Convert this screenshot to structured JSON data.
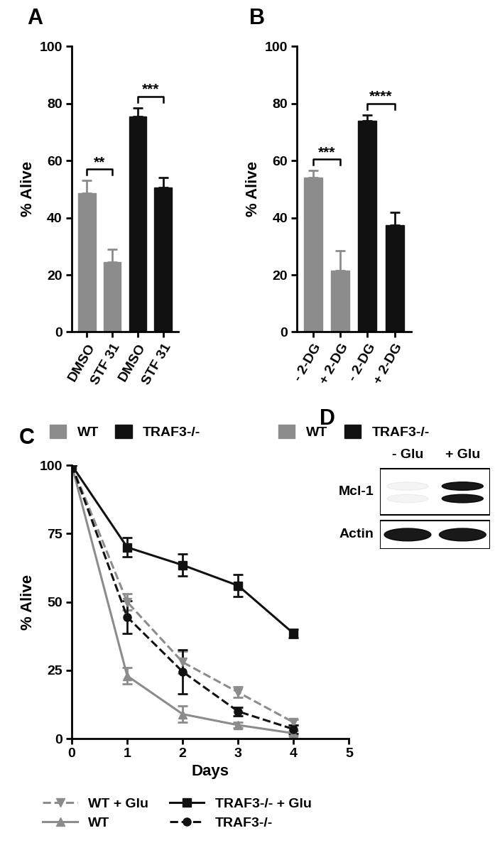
{
  "chart_data": [
    {
      "type": "bar",
      "panel": "A",
      "y_label": "% Alive",
      "categories": [
        "DMSO",
        "STF 31",
        "DMSO",
        "STF 31"
      ],
      "series": [
        {
          "name": "WT",
          "color": "#8c8c8c",
          "values": [
            48.5,
            24.5,
            null,
            null
          ],
          "errors": [
            4.5,
            4.5,
            null,
            null
          ]
        },
        {
          "name": "TRAF3-/-",
          "color": "#111111",
          "values": [
            null,
            null,
            75.5,
            50.5
          ],
          "errors": [
            null,
            null,
            3,
            3.5
          ]
        }
      ],
      "annotations": [
        {
          "between": [
            0,
            1
          ],
          "text": "**"
        },
        {
          "between": [
            2,
            3
          ],
          "text": "***"
        }
      ],
      "ylim": [
        0,
        100
      ],
      "yticks": [
        0,
        20,
        40,
        60,
        80,
        100
      ],
      "legend": "bottom"
    },
    {
      "type": "bar",
      "panel": "B",
      "y_label": "% Alive",
      "categories": [
        "- 2-DG",
        "+ 2-DG",
        "- 2-DG",
        "+ 2-DG"
      ],
      "series": [
        {
          "name": "WT",
          "color": "#8c8c8c",
          "values": [
            54,
            21.5,
            null,
            null
          ],
          "errors": [
            2.5,
            7,
            null,
            null
          ]
        },
        {
          "name": "TRAF3-/-",
          "color": "#111111",
          "values": [
            null,
            null,
            74,
            37.5
          ],
          "errors": [
            null,
            null,
            2,
            4.5
          ]
        }
      ],
      "annotations": [
        {
          "between": [
            0,
            1
          ],
          "text": "***"
        },
        {
          "between": [
            2,
            3
          ],
          "text": "****"
        }
      ],
      "ylim": [
        0,
        100
      ],
      "yticks": [
        0,
        20,
        40,
        60,
        80,
        100
      ],
      "legend": "bottom"
    },
    {
      "type": "line",
      "panel": "C",
      "x_label": "Days",
      "y_label": "% Alive",
      "x": [
        0,
        1,
        2,
        3,
        4
      ],
      "series": [
        {
          "name": "WT + Glu",
          "color": "#8c8c8c",
          "marker": "triangle_down",
          "line_style": "dashed",
          "values": [
            100,
            50,
            28,
            17,
            6
          ],
          "errors": [
            0,
            3,
            4,
            2,
            1
          ]
        },
        {
          "name": "WT",
          "color": "#8c8c8c",
          "marker": "triangle_up",
          "line_style": "solid",
          "values": [
            100,
            23,
            9,
            5,
            2
          ],
          "errors": [
            0,
            3,
            3,
            1,
            1
          ]
        },
        {
          "name": "TRAF3-/- + Glu",
          "color": "#111111",
          "marker": "square",
          "line_style": "solid",
          "values": [
            100,
            70,
            63.5,
            56,
            38.5
          ],
          "errors": [
            0,
            3.5,
            4,
            4,
            1.5
          ]
        },
        {
          "name": "TRAF3-/-",
          "color": "#111111",
          "marker": "circle",
          "line_style": "dashed",
          "values": [
            100,
            44.5,
            24.5,
            10,
            3.5
          ],
          "errors": [
            0,
            6,
            8,
            1.5,
            1.5
          ]
        }
      ],
      "xlim": [
        0,
        5
      ],
      "xticks": [
        0,
        1,
        2,
        3,
        4,
        5
      ],
      "ylim": [
        0,
        100
      ],
      "yticks": [
        0,
        25,
        50,
        75,
        100
      ],
      "legend": "bottom"
    },
    {
      "type": "blot",
      "panel": "D",
      "categories": [
        "- Glu",
        "+ Glu"
      ],
      "series": [
        {
          "name": "Mcl-1",
          "values": [
            0.05,
            1
          ]
        },
        {
          "name": "Actin",
          "values": [
            1,
            1
          ]
        }
      ]
    }
  ]
}
